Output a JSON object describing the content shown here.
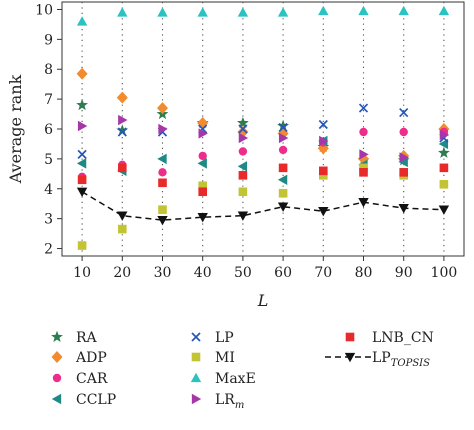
{
  "chart_data": {
    "type": "scatter",
    "title": "",
    "xlabel": "L",
    "ylabel": "Average rank",
    "x": [
      10,
      20,
      30,
      40,
      50,
      60,
      70,
      80,
      90,
      100
    ],
    "xlim": [
      5,
      105
    ],
    "ylim": [
      1.75,
      10.25
    ],
    "yticks": [
      2,
      3,
      4,
      5,
      6,
      7,
      8,
      9,
      10
    ],
    "grid": "vertical dotted",
    "legend_position": "bottom",
    "series": [
      {
        "name": "RA",
        "marker": "star",
        "color": "#2e7d4f",
        "values": [
          6.8,
          5.95,
          6.5,
          6.2,
          6.2,
          6.1,
          5.4,
          4.95,
          4.95,
          5.2
        ]
      },
      {
        "name": "ADP",
        "marker": "diamond",
        "color": "#f28a2e",
        "values": [
          7.85,
          7.05,
          6.7,
          6.2,
          5.9,
          5.85,
          5.35,
          5.0,
          5.1,
          6.0
        ]
      },
      {
        "name": "CAR",
        "marker": "circle",
        "color": "#ee2c8a",
        "values": [
          4.4,
          4.8,
          4.55,
          5.1,
          5.25,
          5.3,
          5.55,
          5.9,
          5.9,
          5.9
        ]
      },
      {
        "name": "CCLP",
        "marker": "triangle-left",
        "color": "#1d8a86",
        "values": [
          4.85,
          4.6,
          5.0,
          4.85,
          4.75,
          4.3,
          5.6,
          4.8,
          4.9,
          5.5
        ]
      },
      {
        "name": "LP",
        "marker": "x",
        "color": "#2656b8",
        "values": [
          5.15,
          5.9,
          5.9,
          6.0,
          6.0,
          6.05,
          6.15,
          6.7,
          6.55,
          5.7
        ]
      },
      {
        "name": "MI",
        "marker": "square",
        "color": "#c3c433",
        "values": [
          2.1,
          2.65,
          3.3,
          4.1,
          3.9,
          3.85,
          4.45,
          4.7,
          4.45,
          4.15
        ]
      },
      {
        "name": "MaxE",
        "marker": "triangle-up",
        "color": "#2bc2c4",
        "values": [
          9.6,
          9.9,
          9.9,
          9.9,
          9.9,
          9.9,
          9.95,
          9.95,
          9.95,
          9.95
        ]
      },
      {
        "name": "LR",
        "name_sub": "m",
        "marker": "triangle-right",
        "color": "#a637a8",
        "values": [
          6.1,
          6.3,
          6.0,
          5.85,
          5.7,
          5.7,
          5.6,
          5.15,
          5.05,
          5.8
        ]
      },
      {
        "name": "LNB_CN",
        "marker": "square",
        "color": "#e82a2a",
        "values": [
          4.3,
          4.7,
          4.2,
          3.9,
          4.45,
          4.7,
          4.6,
          4.55,
          4.55,
          4.7
        ]
      },
      {
        "name": "LP",
        "name_sub": "TOPSIS",
        "marker": "triangle-down",
        "color": "#111111",
        "line": "dashed",
        "values": [
          3.9,
          3.1,
          2.95,
          3.05,
          3.1,
          3.4,
          3.25,
          3.55,
          3.35,
          3.3
        ]
      }
    ]
  }
}
